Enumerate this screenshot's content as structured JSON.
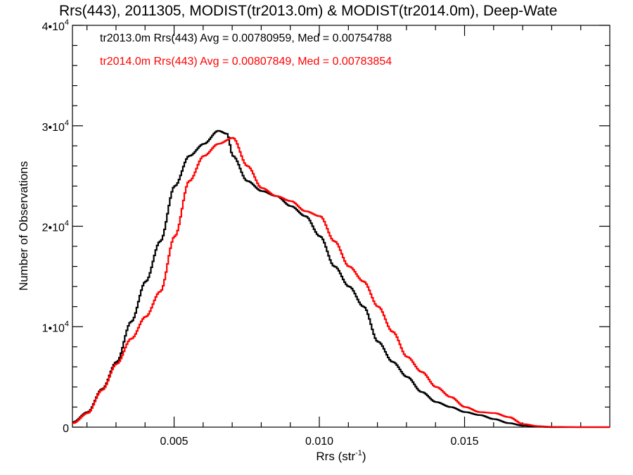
{
  "chart_data": {
    "type": "line",
    "title": "Rrs(443), 2011305, MODIST(tr2013.0m) & MODIST(tr2014.0m), Deep-Wate",
    "xlabel": "Rrs (str",
    "xlabel_sup": "-1",
    "xlabel_end": ")",
    "ylabel": "Number of Observations",
    "xlim": [
      0.0015,
      0.02
    ],
    "ylim": [
      0,
      40000
    ],
    "x_tick_values": [
      0.005,
      0.01,
      0.015
    ],
    "x_tick_labels": [
      "0.005",
      "0.010",
      "0.015"
    ],
    "y_ticks": [
      {
        "value": 0,
        "base": "0",
        "exp": ""
      },
      {
        "value": 10000,
        "base": "1•10",
        "exp": "4"
      },
      {
        "value": 20000,
        "base": "2•10",
        "exp": "4"
      },
      {
        "value": 30000,
        "base": "3•10",
        "exp": "4"
      },
      {
        "value": 40000,
        "base": "4•10",
        "exp": "4"
      }
    ],
    "grid": false,
    "legend_position": "top-left",
    "series": [
      {
        "name": "tr2013.0m",
        "color": "#000000",
        "legend_text": "tr2013.0m Rrs(443) Avg = 0.00780959, Med = 0.00754788",
        "x": [
          0.0015,
          0.002,
          0.0025,
          0.003,
          0.0035,
          0.004,
          0.0045,
          0.005,
          0.0055,
          0.006,
          0.0065,
          0.0068,
          0.007,
          0.0075,
          0.008,
          0.0085,
          0.009,
          0.0095,
          0.01,
          0.0105,
          0.011,
          0.0115,
          0.012,
          0.0125,
          0.013,
          0.0135,
          0.014,
          0.0145,
          0.015,
          0.0155,
          0.016,
          0.0165,
          0.017,
          0.0175,
          0.018,
          0.019,
          0.02
        ],
        "y": [
          500,
          1500,
          3800,
          6500,
          10500,
          14500,
          18500,
          24000,
          27000,
          28200,
          29500,
          29200,
          27000,
          24500,
          23500,
          23000,
          22000,
          21000,
          19000,
          16000,
          14000,
          12000,
          8500,
          6500,
          5000,
          3500,
          2500,
          2000,
          1500,
          1200,
          800,
          400,
          150,
          50,
          0,
          0,
          0
        ]
      },
      {
        "name": "tr2014.0m",
        "color": "#ff0000",
        "legend_text": "tr2014.0m Rrs(443) Avg = 0.00807849, Med = 0.00783854",
        "x": [
          0.0015,
          0.002,
          0.0025,
          0.003,
          0.0035,
          0.004,
          0.0045,
          0.005,
          0.0055,
          0.006,
          0.0065,
          0.007,
          0.0075,
          0.008,
          0.0085,
          0.009,
          0.0095,
          0.01,
          0.0105,
          0.011,
          0.0115,
          0.012,
          0.0125,
          0.013,
          0.0135,
          0.014,
          0.0145,
          0.015,
          0.0155,
          0.016,
          0.0165,
          0.017,
          0.0175,
          0.018,
          0.019,
          0.02
        ],
        "y": [
          400,
          1400,
          3700,
          6300,
          8800,
          11000,
          13500,
          19000,
          24500,
          27000,
          28200,
          28800,
          26000,
          23800,
          23000,
          22500,
          21500,
          21000,
          18500,
          16000,
          14500,
          12000,
          9500,
          7000,
          5500,
          4000,
          3000,
          2000,
          1500,
          1400,
          1000,
          300,
          100,
          30,
          0,
          0
        ]
      }
    ]
  }
}
